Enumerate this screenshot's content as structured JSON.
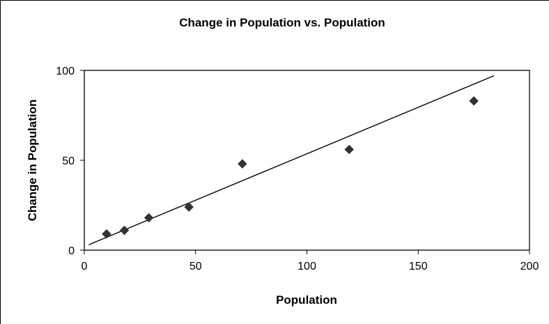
{
  "chart_data": {
    "type": "scatter",
    "title": "Change in Population vs. Population",
    "xlabel": "Population",
    "ylabel": "Change in Population",
    "xlim": [
      0,
      200
    ],
    "ylim": [
      0,
      100
    ],
    "x_ticks": [
      "0",
      "50",
      "100",
      "150",
      "200"
    ],
    "y_ticks": [
      "0",
      "50",
      "100"
    ],
    "grid": false,
    "legend": "none",
    "series": [
      {
        "points": [
          {
            "x": 10,
            "y": 9
          },
          {
            "x": 18,
            "y": 11
          },
          {
            "x": 29,
            "y": 18
          },
          {
            "x": 47,
            "y": 24
          },
          {
            "x": 71,
            "y": 48
          },
          {
            "x": 119,
            "y": 56
          },
          {
            "x": 175,
            "y": 83
          }
        ],
        "marker": "diamond",
        "color": "#333333"
      }
    ],
    "trendline": {
      "type": "linear",
      "from": {
        "x": 2,
        "y": 3
      },
      "to": {
        "x": 184,
        "y": 97
      },
      "color": "#000000"
    }
  }
}
